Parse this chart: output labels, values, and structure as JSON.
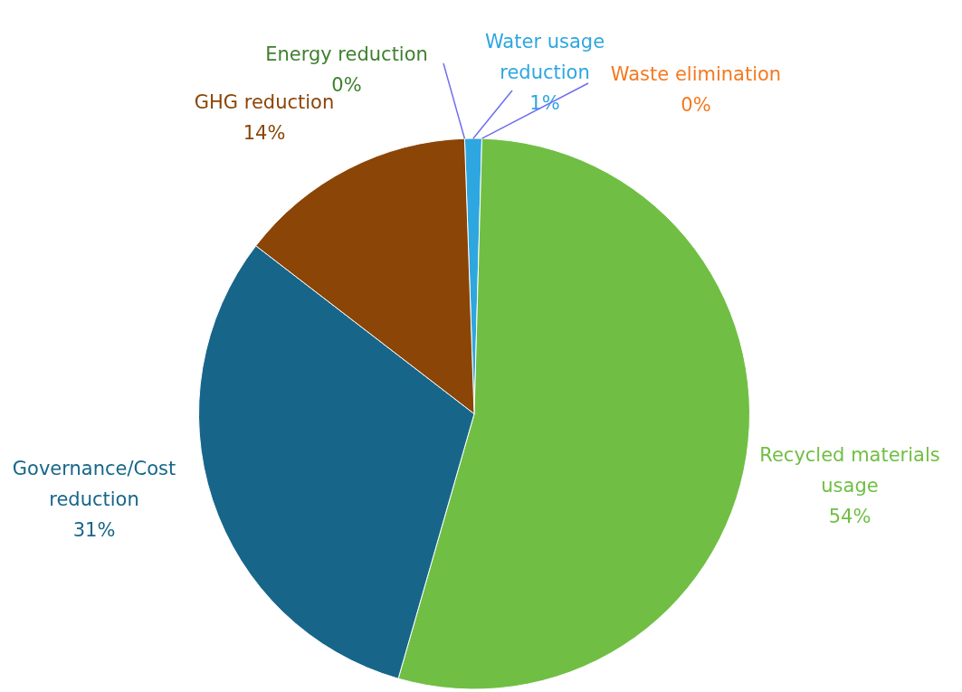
{
  "chart_data": {
    "type": "pie",
    "categories": [
      "Water usage reduction",
      "Waste elimination",
      "Recycled materials usage",
      "Governance/Cost reduction",
      "GHG reduction",
      "Energy reduction"
    ],
    "values": [
      1,
      0,
      54,
      31,
      14,
      0
    ],
    "colors": [
      "#2ea6e0",
      "#f47920",
      "#70bf44",
      "#17668a",
      "#8b4507",
      "#3f7f2f"
    ],
    "value_labels": [
      "1%",
      "0%",
      "54%",
      "31%",
      "14%",
      "0%"
    ],
    "legend": false
  }
}
